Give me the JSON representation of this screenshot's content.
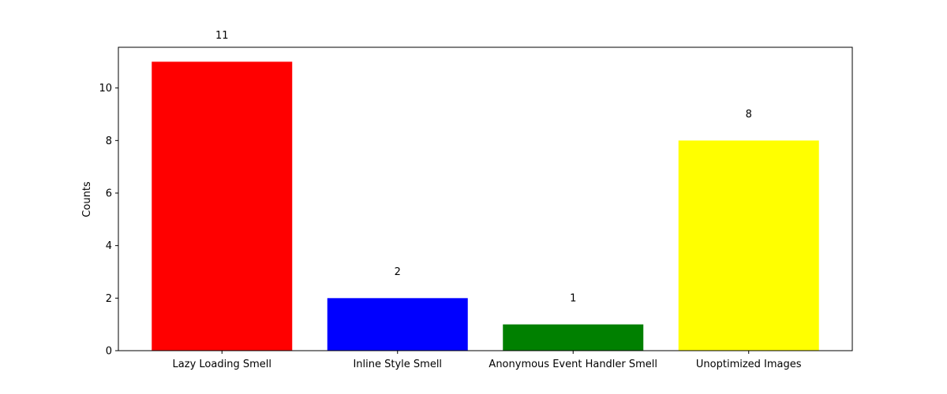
{
  "chart_data": {
    "type": "bar",
    "categories": [
      "Lazy Loading Smell",
      "Inline Style Smell",
      "Anonymous Event Handler Smell",
      "Unoptimized Images"
    ],
    "values": [
      11,
      2,
      1,
      8
    ],
    "colors": [
      "#ff0000",
      "#0000ff",
      "#008000",
      "#ffff00"
    ],
    "value_labels": [
      "11",
      "2",
      "1",
      "8"
    ],
    "title": "",
    "xlabel": "",
    "ylabel": "Counts",
    "ylim": [
      0,
      11.55
    ],
    "yticks": [
      0,
      2,
      4,
      6,
      8,
      10
    ],
    "grid": false,
    "legend": false
  }
}
